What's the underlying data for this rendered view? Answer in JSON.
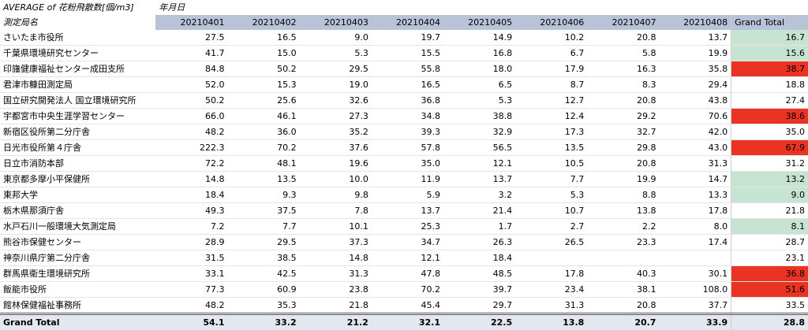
{
  "pivot": {
    "title": "AVERAGE of 花粉飛散数[個/m3]",
    "column_group_label": "年月日",
    "row_header": "測定局名",
    "grand_total_label": "Grand Total",
    "columns": [
      "20210401",
      "20210402",
      "20210403",
      "20210404",
      "20210405",
      "20210406",
      "20210407",
      "20210408"
    ],
    "highlight_colors": {
      "green": "#c7e3d1",
      "red": "#ea3323"
    },
    "rows": [
      {
        "name": "さいたま市役所",
        "values": [
          "27.5",
          "16.5",
          "9.0",
          "19.7",
          "14.9",
          "10.2",
          "20.8",
          "13.7"
        ],
        "total": "16.7",
        "highlight": "green"
      },
      {
        "name": "千葉県環境研究センター",
        "values": [
          "41.7",
          "15.0",
          "5.3",
          "15.5",
          "16.8",
          "6.7",
          "5.8",
          "19.9"
        ],
        "total": "15.6",
        "highlight": "green"
      },
      {
        "name": "印旛健康福祉センター成田支所",
        "values": [
          "84.8",
          "50.2",
          "29.5",
          "55.8",
          "18.0",
          "17.9",
          "16.3",
          "35.8"
        ],
        "total": "38.7",
        "highlight": "red"
      },
      {
        "name": "君津市糠田測定局",
        "values": [
          "52.0",
          "15.3",
          "19.0",
          "16.5",
          "6.5",
          "8.7",
          "8.3",
          "29.4"
        ],
        "total": "18.8",
        "highlight": ""
      },
      {
        "name": "国立研究開発法人 国立環境研究所",
        "values": [
          "50.2",
          "25.6",
          "32.6",
          "36.8",
          "5.3",
          "12.7",
          "20.8",
          "43.8"
        ],
        "total": "27.4",
        "highlight": ""
      },
      {
        "name": "宇都宮市中央生涯学習センター",
        "values": [
          "66.0",
          "46.1",
          "27.3",
          "34.8",
          "38.8",
          "12.4",
          "29.2",
          "70.6"
        ],
        "total": "38.6",
        "highlight": "red"
      },
      {
        "name": "新宿区役所第二分庁舎",
        "values": [
          "48.2",
          "36.0",
          "35.2",
          "39.3",
          "32.9",
          "17.3",
          "32.7",
          "42.0"
        ],
        "total": "35.0",
        "highlight": ""
      },
      {
        "name": "日光市役所第４庁舎",
        "values": [
          "222.3",
          "70.2",
          "37.6",
          "57.8",
          "56.5",
          "13.5",
          "29.8",
          "43.0"
        ],
        "total": "67.9",
        "highlight": "red"
      },
      {
        "name": "日立市消防本部",
        "values": [
          "72.2",
          "48.1",
          "19.6",
          "35.0",
          "12.1",
          "10.5",
          "20.8",
          "31.3"
        ],
        "total": "31.2",
        "highlight": ""
      },
      {
        "name": "東京都多摩小平保健所",
        "values": [
          "14.8",
          "13.5",
          "10.0",
          "11.9",
          "13.7",
          "7.7",
          "19.9",
          "14.7"
        ],
        "total": "13.2",
        "highlight": "green"
      },
      {
        "name": "東邦大学",
        "values": [
          "18.4",
          "9.3",
          "9.8",
          "5.9",
          "3.2",
          "5.3",
          "8.8",
          "13.3"
        ],
        "total": "9.0",
        "highlight": "green"
      },
      {
        "name": "栃木県那須庁舎",
        "values": [
          "49.3",
          "37.5",
          "7.8",
          "13.7",
          "21.4",
          "10.7",
          "13.8",
          "17.8"
        ],
        "total": "21.8",
        "highlight": ""
      },
      {
        "name": "水戸石川一般環境大気測定局",
        "values": [
          "7.2",
          "7.7",
          "10.1",
          "25.3",
          "1.7",
          "2.7",
          "2.2",
          "8.0"
        ],
        "total": "8.1",
        "highlight": "green"
      },
      {
        "name": "熊谷市保健センター",
        "values": [
          "28.9",
          "29.5",
          "37.3",
          "34.7",
          "26.3",
          "26.5",
          "23.3",
          "17.4"
        ],
        "total": "28.7",
        "highlight": ""
      },
      {
        "name": "神奈川県庁第二分庁舎",
        "values": [
          "31.5",
          "38.5",
          "14.8",
          "12.1",
          "18.4",
          "",
          "",
          ""
        ],
        "total": "23.1",
        "highlight": ""
      },
      {
        "name": "群馬県衛生環境研究所",
        "values": [
          "33.1",
          "42.5",
          "31.3",
          "47.8",
          "48.5",
          "17.8",
          "40.3",
          "30.1"
        ],
        "total": "36.8",
        "highlight": "red"
      },
      {
        "name": "飯能市役所",
        "values": [
          "77.3",
          "60.9",
          "23.8",
          "70.2",
          "39.7",
          "23.4",
          "38.1",
          "108.0"
        ],
        "total": "51.6",
        "highlight": "red"
      },
      {
        "name": "館林保健福祉事務所",
        "values": [
          "48.2",
          "35.3",
          "21.8",
          "45.4",
          "29.7",
          "31.3",
          "20.8",
          "37.7"
        ],
        "total": "33.5",
        "highlight": ""
      }
    ],
    "grand_total_row": {
      "values": [
        "54.1",
        "33.2",
        "21.2",
        "32.1",
        "22.5",
        "13.8",
        "20.7",
        "33.9"
      ],
      "total": "28.8"
    }
  }
}
